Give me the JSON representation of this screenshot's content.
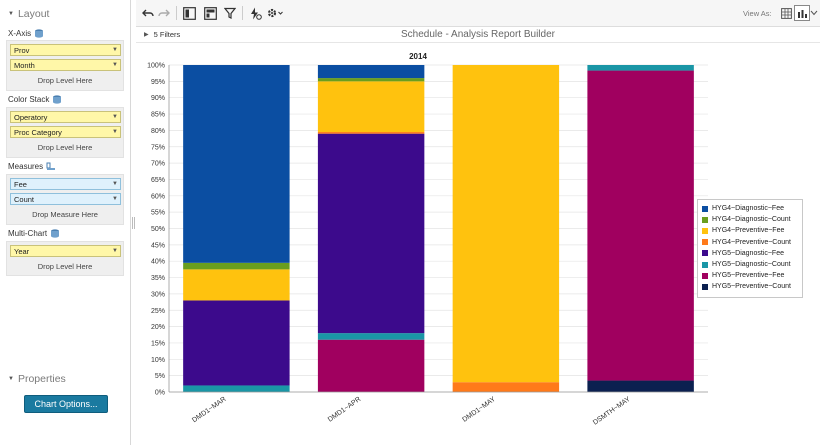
{
  "sidebar": {
    "layout_label": "Layout",
    "xaxis": {
      "label": "X-Axis",
      "fields": [
        "Prov",
        "Month"
      ],
      "drop_hint": "Drop Level Here"
    },
    "color_stack": {
      "label": "Color Stack",
      "fields": [
        "Operatory",
        "Proc Category"
      ],
      "drop_hint": "Drop Level Here"
    },
    "measures": {
      "label": "Measures",
      "fields": [
        "Fee",
        "Count"
      ],
      "drop_hint": "Drop Measure Here"
    },
    "multi_chart": {
      "label": "Multi-Chart",
      "fields": [
        "Year"
      ],
      "drop_hint": "Drop Level Here"
    },
    "properties_label": "Properties",
    "chart_options_label": "Chart Options..."
  },
  "toolbar": {
    "icons": [
      "undo-icon",
      "redo-icon",
      "layout-left-icon",
      "layout-top-icon",
      "filter-icon",
      "run-icon",
      "settings-icon"
    ],
    "view_as_label": "View As:",
    "view_icons": [
      "grid-view-icon",
      "chart-view-icon",
      "chevron-down-icon"
    ]
  },
  "filters": {
    "label": "5 Filters"
  },
  "report": {
    "title": "Schedule - Analysis Report Builder"
  },
  "colors": {
    "accent_button": "#1a7aa0",
    "field_yellow": "#fff7a8",
    "field_blue": "#dff1fc"
  },
  "chart_data": {
    "type": "bar",
    "stacked": "percent",
    "title": "2014",
    "xlabel": "",
    "ylabel": "",
    "ylim": [
      0,
      100
    ],
    "y_tick_step": 5,
    "y_tick_suffix": "%",
    "grid": true,
    "legend_position": "right",
    "categories": [
      "DMD1~MAR",
      "DMD1~APR",
      "DMD1~MAY",
      "DSMTH~MAY"
    ],
    "series": [
      {
        "name": "HYG5~Preventive~Count",
        "color": "#0b2050",
        "values": [
          0,
          0,
          0,
          3.5
        ]
      },
      {
        "name": "HYG5~Preventive~Fee",
        "color": "#a0005f",
        "values": [
          0,
          16,
          0,
          94.8
        ]
      },
      {
        "name": "HYG5~Diagnostic~Count",
        "color": "#1a96a6",
        "values": [
          2,
          2,
          0,
          1.7
        ]
      },
      {
        "name": "HYG5~Diagnostic~Fee",
        "color": "#3c0a8c",
        "values": [
          26,
          61,
          0,
          0
        ]
      },
      {
        "name": "HYG4~Preventive~Count",
        "color": "#ff7a1a",
        "values": [
          0,
          0.5,
          3,
          0
        ]
      },
      {
        "name": "HYG4~Preventive~Fee",
        "color": "#ffc20e",
        "values": [
          9.5,
          15.5,
          97,
          0
        ]
      },
      {
        "name": "HYG4~Diagnostic~Count",
        "color": "#6a9e1e",
        "values": [
          2,
          1,
          0,
          0
        ]
      },
      {
        "name": "HYG4~Diagnostic~Fee",
        "color": "#0b4ea2",
        "values": [
          60.5,
          4,
          0,
          0
        ]
      }
    ],
    "legend_order": [
      "HYG4~Diagnostic~Fee",
      "HYG4~Diagnostic~Count",
      "HYG4~Preventive~Fee",
      "HYG4~Preventive~Count",
      "HYG5~Diagnostic~Fee",
      "HYG5~Diagnostic~Count",
      "HYG5~Preventive~Fee",
      "HYG5~Preventive~Count"
    ]
  }
}
